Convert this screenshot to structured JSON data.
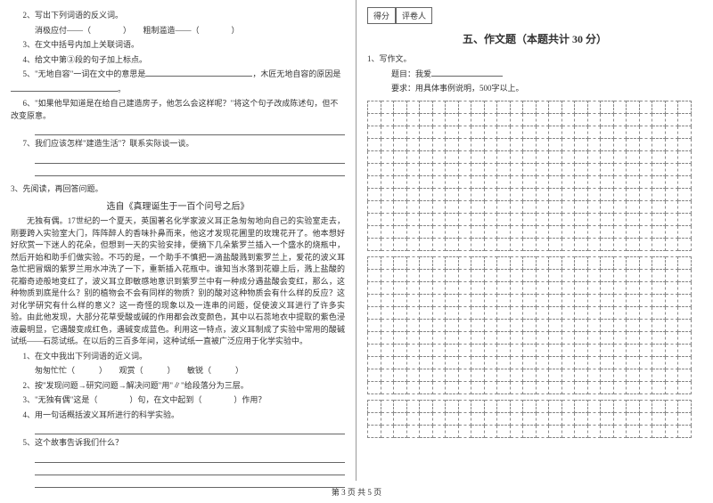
{
  "left": {
    "q2": "2、写出下列词语的反义词。",
    "q2_line": "消极应付——（　　　　）　　粗制滥造——（　　　　）",
    "q3": "3、在文中括号内加上关联词语。",
    "q4": "4、给文中第③段的句子加上标点。",
    "q5_a": "5、\"无地自容\"一词在文中的意思是",
    "q5_b": "，木匠无地自容的原因是",
    "q5_c": "。",
    "q6_a": "6、\"如果他早知道是在给自己建造房子，他怎么会这样呢？\"将这个句子改成陈述句，但不改变原意。",
    "q7": "7、我们应该怎样\"建造生活\"？联系实际谈一谈。",
    "item3": "3、先阅读，再回答问题。",
    "title": "选自《真理诞生于一百个问号之后》",
    "p1": "无独有偶。17世纪的一个夏天，英国著名化学家波义耳正急匆匆地向自己的实验室走去，刚要跨入实验室大门，阵阵醉人的香味扑鼻而来，他这才发现花圃里的玫瑰花开了。他本想好好欣赏一下迷人的花朵，但想到一天的实验安排，便摘下几朵紫罗兰插入一个盛水的烧瓶中，然后开始和助手们做实验。不巧的是，一个助手不慎把一滴盐酸溅到紫罗兰上，爱花的波义耳急忙把冒烟的紫罗兰用水冲洗了一下，重新插入花瓶中。谁知当水落到花瓣上后，溅上盐酸的花瓣奇迹般地变红了，波义耳立即敏感地意识到紫罗兰中有一种成分遇盐酸会变红，那么，这种物质到底是什么？别的植物会不会有同样的物质？别的酸对这种物质会有什么样的反应？这对化学研究有什么样的意义？这一奇怪的现象以及一连串的问题，促使波义耳进行了许多实验。由此他发现，大部分花草受酸或碱的作用都会改变颜色，其中以石蕊地衣中提取的紫色浸液最明显，它遇酸变成红色，遇碱变成蓝色。利用这一特点，波义耳制成了实验中常用的酸碱试纸——石蕊试纸。在以后的三百多年间，这种试纸一直被广泛应用于化学实验中。",
    "sq1": "1、在文中我出下列词语的近义词。",
    "sq1_line": "匆匆忙忙（　　　）　　观赏（　　　）　　敏锐（　　　）",
    "sq2": "2、按\"发现问题→研究问题→解决问题\"用\"∥\"给段落分为三层。",
    "sq3": "3、\"无独有偶\"这是（　　　　）句，在文中起到（　　　　）作用？",
    "sq4": "4、用一句话概括波义耳所进行的科学实验。",
    "sq5": "5、这个故事告诉我们什么？"
  },
  "right": {
    "score1": "得分",
    "score2": "评卷人",
    "section": "五、作文题（本题共计 30 分）",
    "w1": "1、写作文。",
    "w2": "题目：我爱",
    "w3": "要求：用具体事例说明，500字以上。",
    "grid": {
      "cols": 25,
      "block_rows": [
        12,
        11,
        3
      ],
      "gaps": 2
    }
  },
  "footer": "第 3 页 共 5 页"
}
